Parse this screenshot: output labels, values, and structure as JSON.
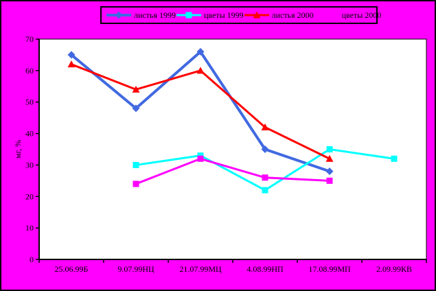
{
  "window": {
    "page_border_color": "#000000"
  },
  "legend": {
    "position": "top",
    "border_color": "#000000"
  },
  "chart_data": {
    "type": "line",
    "title": "",
    "xlabel": "",
    "ylabel": "мг, %",
    "ylim": [
      0,
      70
    ],
    "ytick_step": 10,
    "yticks": [
      0,
      10,
      20,
      30,
      40,
      50,
      60,
      70
    ],
    "grid": false,
    "legend_position": "top",
    "page_bg": "#ff00ff",
    "plot_bg": "#ffffff",
    "axis_color": "#000000",
    "categories": [
      "25.06.99Б",
      "9.07.99НЦ",
      "21.07.99МЦ",
      "4.08.99НП",
      "17.08.99МП",
      "2.09.99КВ"
    ],
    "series": [
      {
        "name": "листья 1999",
        "color": "#4169e1",
        "marker": "diamond",
        "line_width": 4,
        "values": [
          65,
          48,
          66,
          35,
          28,
          null
        ]
      },
      {
        "name": "цветы 1999",
        "color": "#00ffff",
        "marker": "square",
        "line_width": 3,
        "values": [
          null,
          30,
          33,
          22,
          35,
          32
        ]
      },
      {
        "name": "листья 2000",
        "color": "#ff0000",
        "marker": "triangle",
        "line_width": 3,
        "values": [
          62,
          54,
          60,
          42,
          32,
          null
        ]
      },
      {
        "name": "цветы 2000",
        "color": "#ff00ff",
        "marker": "square",
        "line_width": 3,
        "values": [
          null,
          24,
          32,
          26,
          25,
          null
        ]
      }
    ]
  }
}
